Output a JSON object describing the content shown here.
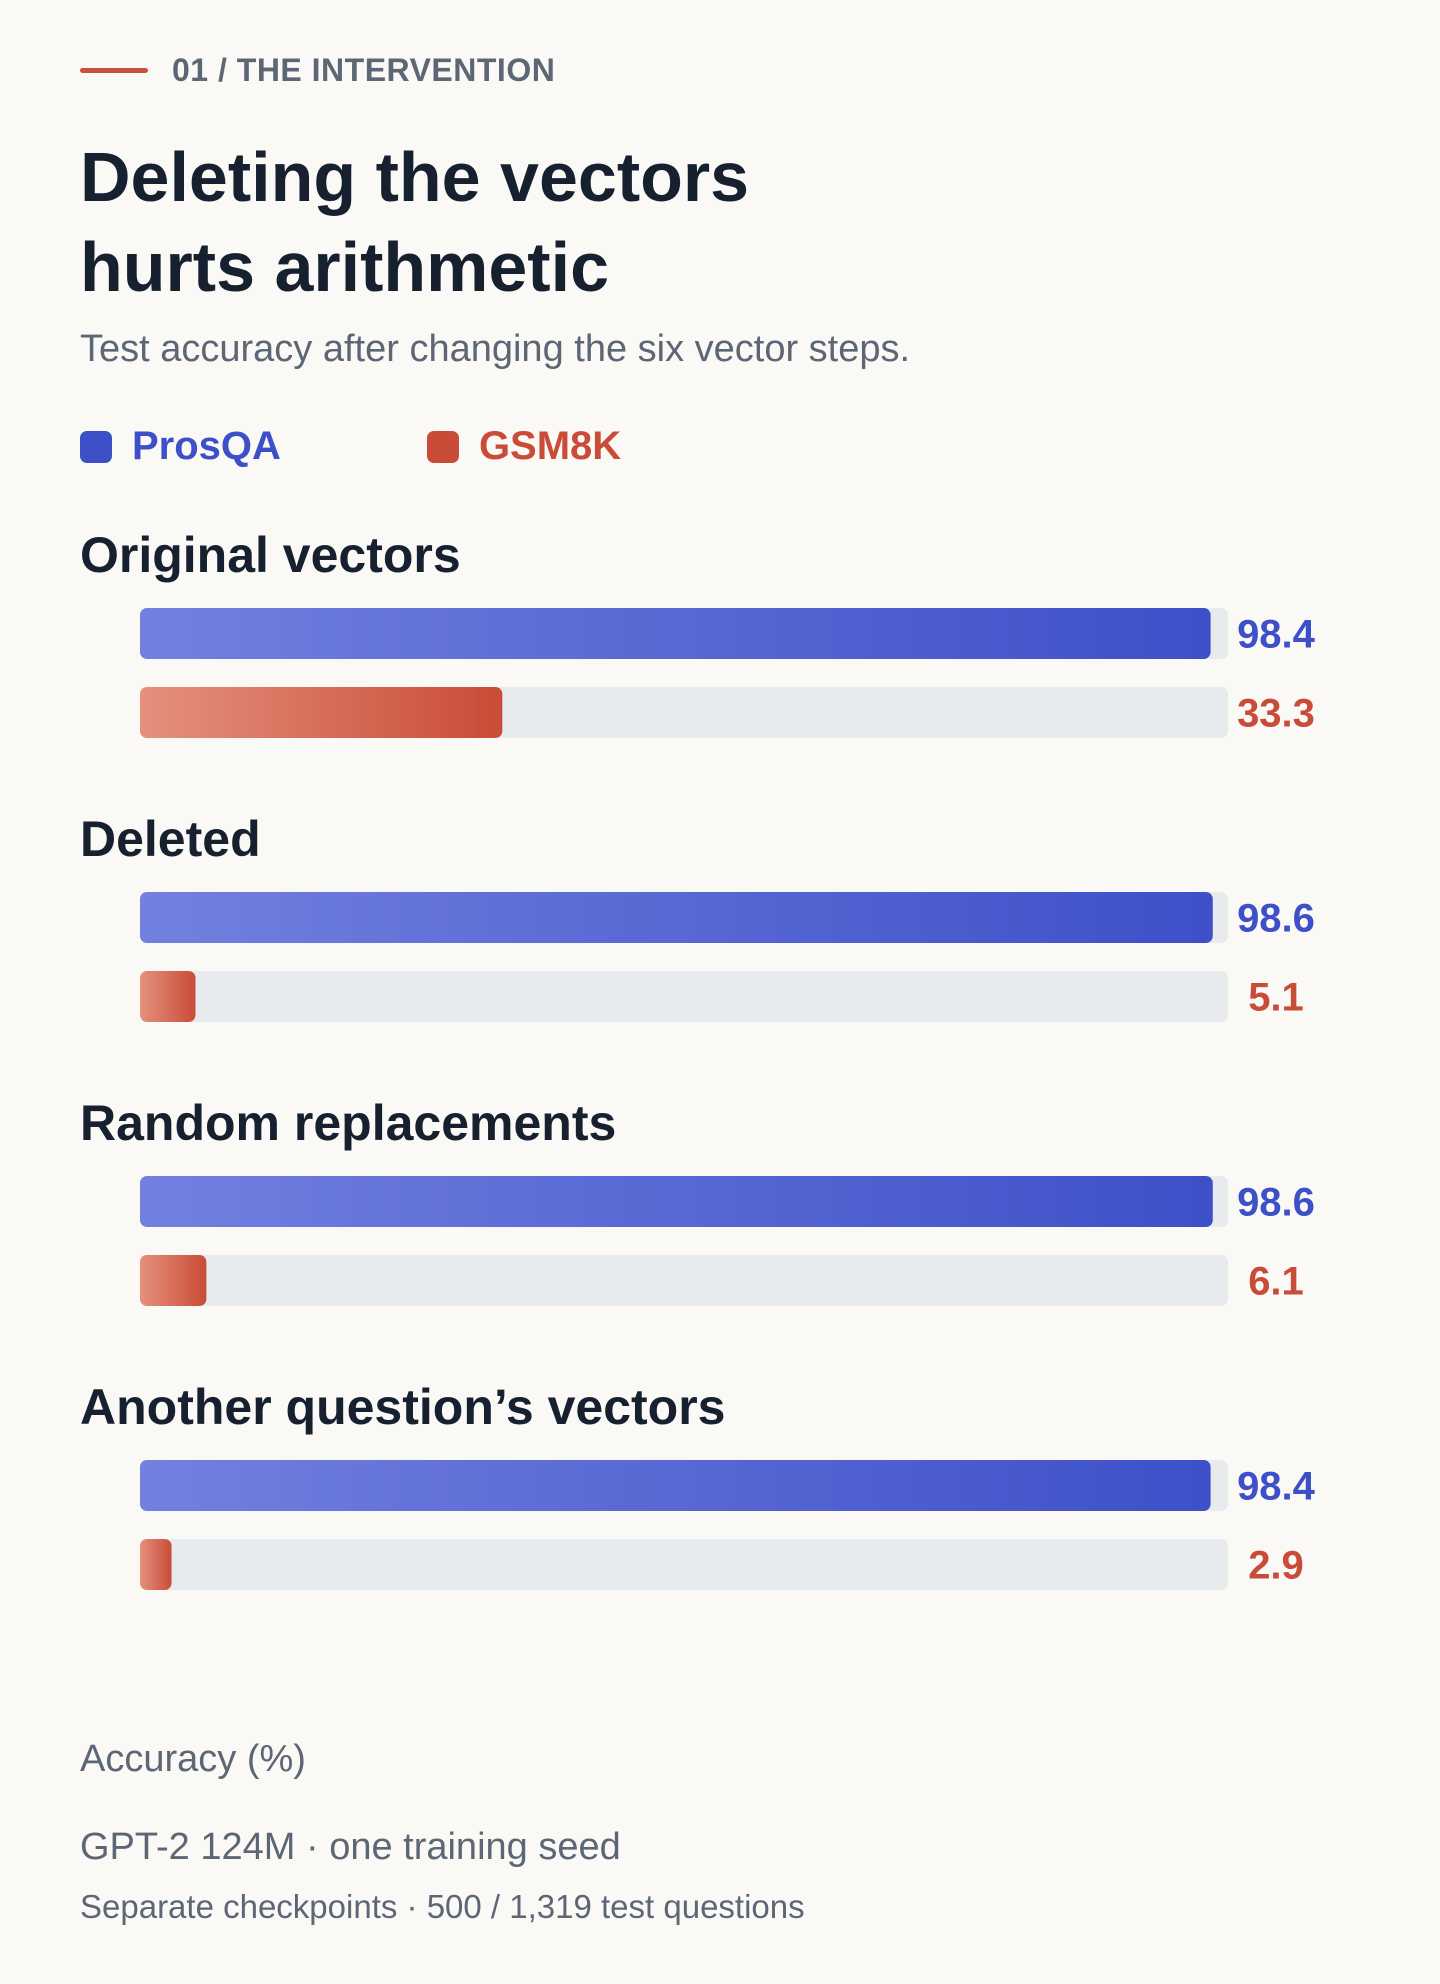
{
  "eyebrow": "01 / THE INTERVENTION",
  "title_line1": "Deleting the vectors",
  "title_line2": "hurts arithmetic",
  "subtitle": "Test accuracy after changing the six vector steps.",
  "colors": {
    "prosqa": "#3e50c8",
    "prosqa_light": "#7280e0",
    "gsm8k": "#c94c38",
    "gsm8k_light": "#e4917d",
    "track": "#e8ebed"
  },
  "chart_data": {
    "type": "bar",
    "orientation": "horizontal",
    "categories": [
      "Original vectors",
      "Deleted",
      "Random replacements",
      "Another question’s vectors"
    ],
    "series": [
      {
        "name": "ProsQA",
        "values": [
          98.4,
          98.6,
          98.6,
          98.4
        ],
        "labels": [
          "98.4",
          "98.6",
          "98.6",
          "98.4"
        ]
      },
      {
        "name": "GSM8K",
        "values": [
          33.3,
          5.1,
          6.1,
          2.9
        ],
        "labels": [
          "33.3",
          "5.1",
          "6.1",
          "2.9"
        ]
      }
    ],
    "xlim": [
      0,
      100
    ],
    "xlabel": "Accuracy (%)",
    "legend": "top-left",
    "grid": false
  },
  "footnote_line1": "GPT-2 124M · one training seed",
  "footnote_line2": "Separate checkpoints · 500 / 1,319 test questions"
}
